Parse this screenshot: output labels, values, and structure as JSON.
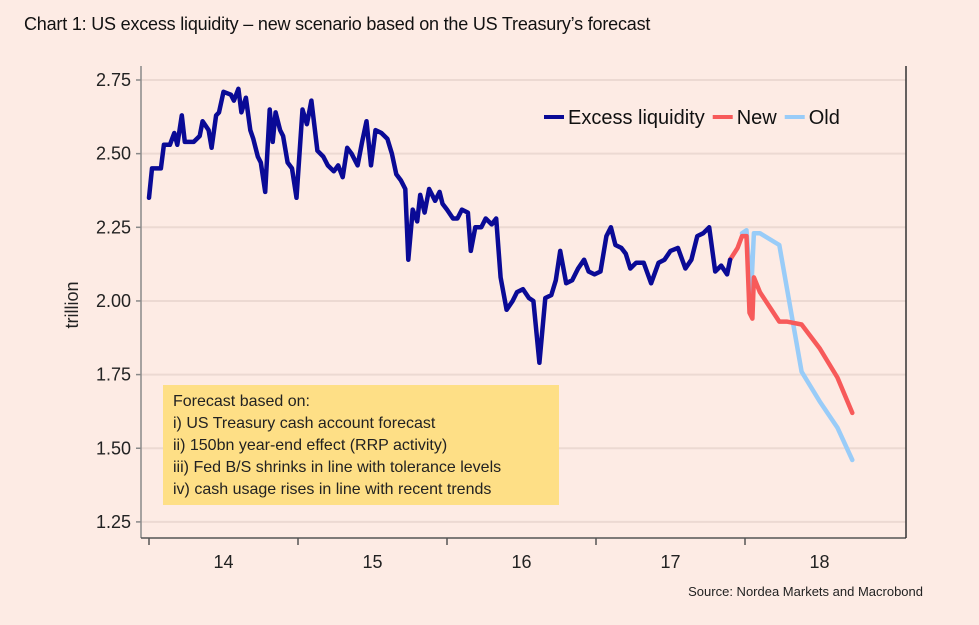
{
  "title": "Chart 1: US excess liquidity – new scenario based on the US Treasury’s forecast",
  "source": "Source: Nordea Markets and Macrobond",
  "note": {
    "heading": "Forecast based on:",
    "lines": [
      "i) US Treasury cash account forecast",
      "ii) 150bn year-end effect (RRP activity)",
      "iii) Fed B/S shrinks in line with tolerance levels",
      "iv) cash usage rises in line with recent trends"
    ]
  },
  "chart_data": {
    "type": "line",
    "title": "Chart 1: US excess liquidity – new scenario based on the US Treasury’s forecast",
    "xlabel": "",
    "ylabel": "trillion",
    "xlim": [
      2013.95,
      2019.08
    ],
    "ylim": [
      1.2,
      2.78
    ],
    "yticks": [
      1.25,
      1.5,
      1.75,
      2.0,
      2.25,
      2.5,
      2.75
    ],
    "ytick_labels": [
      "1.25",
      "1.50",
      "1.75",
      "2.00",
      "2.25",
      "2.50",
      "2.75"
    ],
    "xticks": [
      2014.5,
      2015.5,
      2016.5,
      2017.5,
      2018.5
    ],
    "xtick_labels": [
      "14",
      "15",
      "16",
      "17",
      "18"
    ],
    "xtick_marks": [
      2014,
      2015,
      2016,
      2017,
      2018
    ],
    "grid": true,
    "legend_position": "top-right",
    "series": [
      {
        "name": "Excess liquidity",
        "color": "#0a0a96",
        "points": [
          [
            2014.0,
            2.35
          ],
          [
            2014.02,
            2.45
          ],
          [
            2014.05,
            2.45
          ],
          [
            2014.08,
            2.45
          ],
          [
            2014.1,
            2.53
          ],
          [
            2014.14,
            2.53
          ],
          [
            2014.17,
            2.57
          ],
          [
            2014.19,
            2.53
          ],
          [
            2014.22,
            2.63
          ],
          [
            2014.24,
            2.54
          ],
          [
            2014.3,
            2.54
          ],
          [
            2014.34,
            2.56
          ],
          [
            2014.36,
            2.61
          ],
          [
            2014.4,
            2.58
          ],
          [
            2014.42,
            2.52
          ],
          [
            2014.45,
            2.63
          ],
          [
            2014.47,
            2.64
          ],
          [
            2014.5,
            2.71
          ],
          [
            2014.55,
            2.7
          ],
          [
            2014.57,
            2.68
          ],
          [
            2014.6,
            2.72
          ],
          [
            2014.62,
            2.64
          ],
          [
            2014.65,
            2.69
          ],
          [
            2014.68,
            2.58
          ],
          [
            2014.7,
            2.55
          ],
          [
            2014.73,
            2.49
          ],
          [
            2014.75,
            2.47
          ],
          [
            2014.78,
            2.37
          ],
          [
            2014.81,
            2.65
          ],
          [
            2014.83,
            2.54
          ],
          [
            2014.85,
            2.64
          ],
          [
            2014.88,
            2.58
          ],
          [
            2014.9,
            2.56
          ],
          [
            2014.93,
            2.47
          ],
          [
            2014.96,
            2.45
          ],
          [
            2014.99,
            2.35
          ],
          [
            2015.03,
            2.65
          ],
          [
            2015.06,
            2.6
          ],
          [
            2015.09,
            2.68
          ],
          [
            2015.13,
            2.51
          ],
          [
            2015.17,
            2.49
          ],
          [
            2015.2,
            2.46
          ],
          [
            2015.24,
            2.44
          ],
          [
            2015.27,
            2.46
          ],
          [
            2015.3,
            2.42
          ],
          [
            2015.33,
            2.52
          ],
          [
            2015.36,
            2.5
          ],
          [
            2015.4,
            2.46
          ],
          [
            2015.43,
            2.54
          ],
          [
            2015.46,
            2.61
          ],
          [
            2015.49,
            2.46
          ],
          [
            2015.52,
            2.58
          ],
          [
            2015.56,
            2.57
          ],
          [
            2015.6,
            2.55
          ],
          [
            2015.63,
            2.5
          ],
          [
            2015.66,
            2.43
          ],
          [
            2015.69,
            2.41
          ],
          [
            2015.72,
            2.38
          ],
          [
            2015.74,
            2.14
          ],
          [
            2015.77,
            2.31
          ],
          [
            2015.8,
            2.27
          ],
          [
            2015.82,
            2.36
          ],
          [
            2015.85,
            2.3
          ],
          [
            2015.88,
            2.38
          ],
          [
            2015.92,
            2.34
          ],
          [
            2015.95,
            2.37
          ],
          [
            2015.97,
            2.33
          ],
          [
            2016.0,
            2.31
          ],
          [
            2016.04,
            2.28
          ],
          [
            2016.07,
            2.28
          ],
          [
            2016.1,
            2.31
          ],
          [
            2016.14,
            2.3
          ],
          [
            2016.16,
            2.17
          ],
          [
            2016.19,
            2.25
          ],
          [
            2016.23,
            2.25
          ],
          [
            2016.26,
            2.28
          ],
          [
            2016.3,
            2.26
          ],
          [
            2016.33,
            2.28
          ],
          [
            2016.36,
            2.08
          ],
          [
            2016.4,
            1.97
          ],
          [
            2016.44,
            2.0
          ],
          [
            2016.47,
            2.03
          ],
          [
            2016.51,
            2.04
          ],
          [
            2016.55,
            2.01
          ],
          [
            2016.58,
            2.0
          ],
          [
            2016.62,
            1.79
          ],
          [
            2016.66,
            2.01
          ],
          [
            2016.7,
            2.02
          ],
          [
            2016.73,
            2.07
          ],
          [
            2016.76,
            2.17
          ],
          [
            2016.8,
            2.06
          ],
          [
            2016.84,
            2.07
          ],
          [
            2016.88,
            2.11
          ],
          [
            2016.92,
            2.14
          ],
          [
            2016.95,
            2.1
          ],
          [
            2016.99,
            2.09
          ],
          [
            2017.03,
            2.1
          ],
          [
            2017.07,
            2.22
          ],
          [
            2017.1,
            2.25
          ],
          [
            2017.13,
            2.19
          ],
          [
            2017.17,
            2.18
          ],
          [
            2017.2,
            2.16
          ],
          [
            2017.23,
            2.11
          ],
          [
            2017.27,
            2.13
          ],
          [
            2017.32,
            2.13
          ],
          [
            2017.37,
            2.06
          ],
          [
            2017.42,
            2.13
          ],
          [
            2017.46,
            2.14
          ],
          [
            2017.5,
            2.17
          ],
          [
            2017.55,
            2.18
          ],
          [
            2017.6,
            2.11
          ],
          [
            2017.64,
            2.14
          ],
          [
            2017.68,
            2.22
          ],
          [
            2017.72,
            2.23
          ],
          [
            2017.76,
            2.25
          ],
          [
            2017.8,
            2.1
          ],
          [
            2017.84,
            2.12
          ],
          [
            2017.88,
            2.09
          ],
          [
            2017.9,
            2.14
          ]
        ]
      },
      {
        "name": "New",
        "color": "#f75a5a",
        "points": [
          [
            2017.9,
            2.14
          ],
          [
            2017.95,
            2.18
          ],
          [
            2017.98,
            2.22
          ],
          [
            2018.01,
            2.22
          ],
          [
            2018.03,
            1.96
          ],
          [
            2018.05,
            1.94
          ],
          [
            2018.06,
            2.08
          ],
          [
            2018.1,
            2.03
          ],
          [
            2018.23,
            1.93
          ],
          [
            2018.28,
            1.93
          ],
          [
            2018.38,
            1.92
          ],
          [
            2018.5,
            1.84
          ],
          [
            2018.62,
            1.74
          ],
          [
            2018.72,
            1.62
          ]
        ]
      },
      {
        "name": "Old",
        "color": "#99ccf8",
        "points": [
          [
            2017.98,
            2.23
          ],
          [
            2018.01,
            2.24
          ],
          [
            2018.04,
            2.02
          ],
          [
            2018.06,
            2.23
          ],
          [
            2018.1,
            2.23
          ],
          [
            2018.23,
            2.19
          ],
          [
            2018.38,
            1.76
          ],
          [
            2018.5,
            1.66
          ],
          [
            2018.62,
            1.57
          ],
          [
            2018.72,
            1.46
          ]
        ]
      }
    ]
  }
}
